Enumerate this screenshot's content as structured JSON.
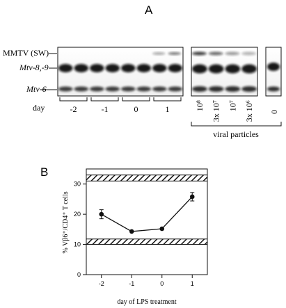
{
  "panel_a": {
    "letter": "A",
    "band_labels": {
      "mmtv": "MMTV (SW)",
      "mtv89": "Mtv-8,-9",
      "mtv6": "Mtv-6"
    },
    "day_label": "day",
    "day_groups": [
      "-2",
      "-1",
      "0",
      "1"
    ],
    "particle_labels": [
      "10⁸",
      "3x 10⁷",
      "10⁷",
      "3x 10⁶"
    ],
    "control_label": "0",
    "viral_label": "viral particles"
  },
  "panel_b": {
    "letter": "B"
  },
  "chart_data": {
    "type": "line",
    "xlabel": "day of LPS treatment",
    "ylabel": "% Vβ6⁺/CD4⁺ T cells",
    "x_ticks": [
      "-2",
      "-1",
      "0",
      "1"
    ],
    "y_ticks": [
      "0",
      "10",
      "20",
      "30"
    ],
    "xlim": [
      -2.5,
      1.5
    ],
    "ylim": [
      0,
      35
    ],
    "series": [
      {
        "x": [
          -2,
          -1,
          0,
          1
        ],
        "y": [
          20,
          14.3,
          15.2,
          25.8
        ],
        "err": [
          1.5,
          0,
          0,
          1.4
        ]
      }
    ],
    "reference_bands": [
      {
        "y_low": 31,
        "y_high": 33,
        "pattern": "hatched"
      },
      {
        "y_low": 10,
        "y_high": 11.8,
        "pattern": "hatched"
      }
    ],
    "colors": {
      "line": "#111111",
      "band": "#222222"
    }
  }
}
